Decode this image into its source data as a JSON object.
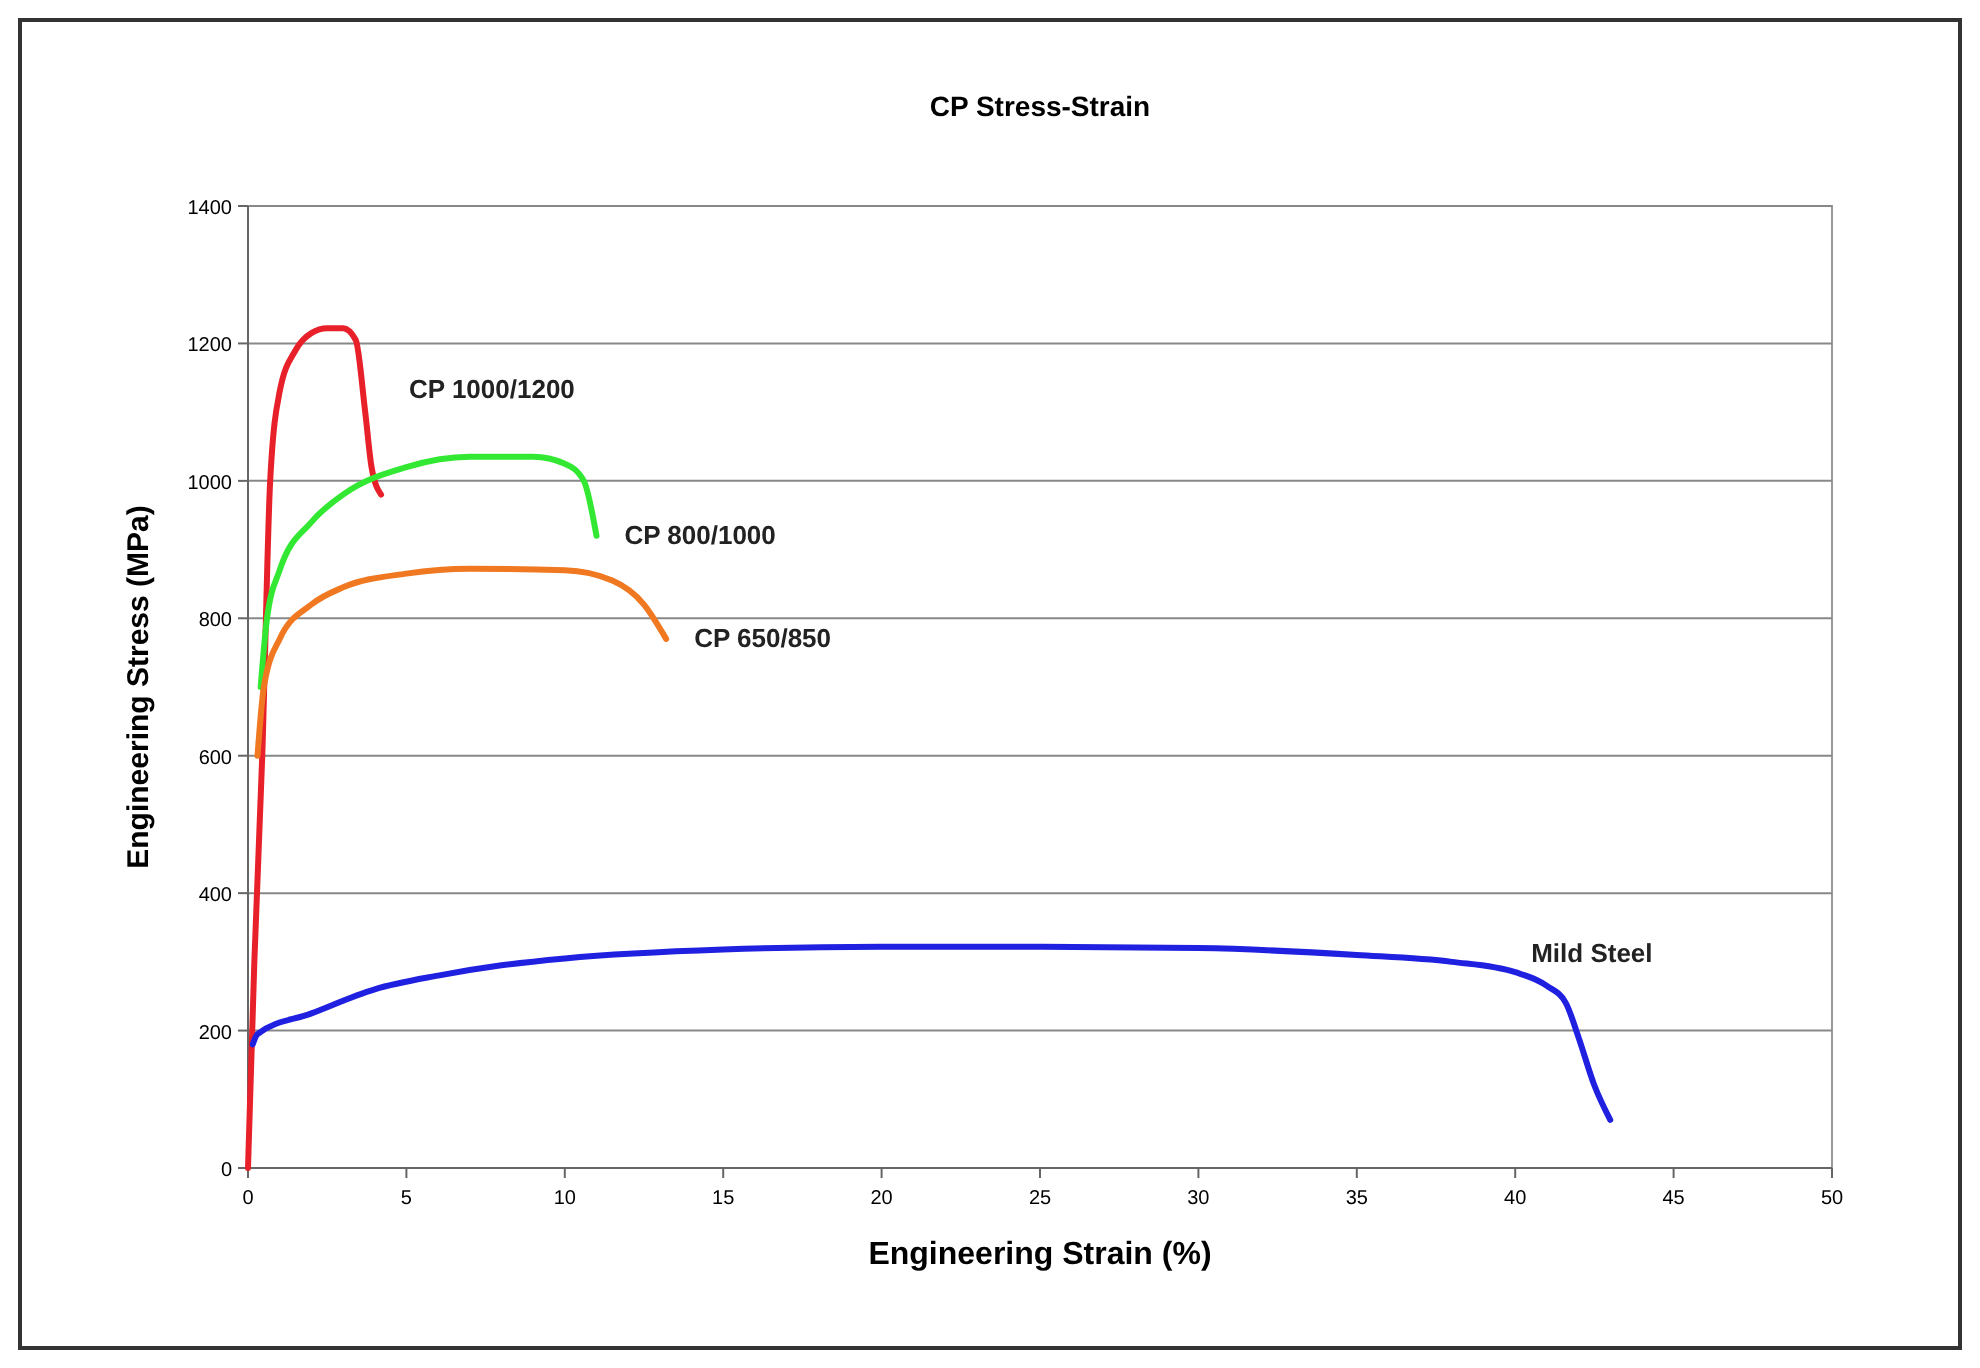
{
  "chart_data": {
    "type": "line",
    "title": "CP Stress-Strain",
    "xlabel": "Engineering Strain (%)",
    "ylabel": "Engineering Stress (MPa)",
    "xlim": [
      0,
      50
    ],
    "xticks": [
      0,
      5,
      10,
      15,
      20,
      25,
      30,
      35,
      40,
      45,
      50
    ],
    "ylim": [
      0,
      1400
    ],
    "yticks": [
      0,
      200,
      400,
      600,
      800,
      1000,
      1200,
      1400
    ],
    "grid": "y",
    "marker": "none",
    "line_style": "solid",
    "series": [
      {
        "name": "CP 1000/1200",
        "color": "#e8202a",
        "x": [
          0,
          0.2,
          0.45,
          0.7,
          1,
          1.5,
          2,
          2.5,
          3,
          3.4,
          3.7,
          3.9,
          4.2
        ],
        "values": [
          0,
          300,
          600,
          1000,
          1130,
          1190,
          1215,
          1222,
          1222,
          1205,
          1100,
          1020,
          980
        ]
      },
      {
        "name": "CP 800/1000",
        "color": "#33e833",
        "x": [
          0.4,
          0.6,
          1,
          2,
          3,
          5,
          7,
          9,
          10,
          10.6,
          11
        ],
        "values": [
          700,
          800,
          870,
          940,
          980,
          1020,
          1035,
          1035,
          1025,
          1000,
          920
        ]
      },
      {
        "name": "CP 650/850",
        "color": "#f07820",
        "x": [
          0.3,
          0.5,
          1,
          2,
          3,
          5,
          7,
          10,
          11.5,
          12.5,
          13.2
        ],
        "values": [
          600,
          700,
          770,
          820,
          845,
          865,
          872,
          870,
          855,
          820,
          770
        ]
      },
      {
        "name": "Mild Steel",
        "color": "#2020e0",
        "x": [
          0.15,
          0.3,
          2,
          4,
          6,
          8,
          10,
          15,
          20,
          25,
          30,
          35,
          38,
          40,
          41,
          41.6,
          42,
          42.5,
          43
        ],
        "values": [
          180,
          195,
          225,
          260,
          280,
          295,
          305,
          318,
          322,
          322,
          320,
          310,
          300,
          285,
          265,
          240,
          190,
          120,
          70
        ]
      }
    ]
  }
}
